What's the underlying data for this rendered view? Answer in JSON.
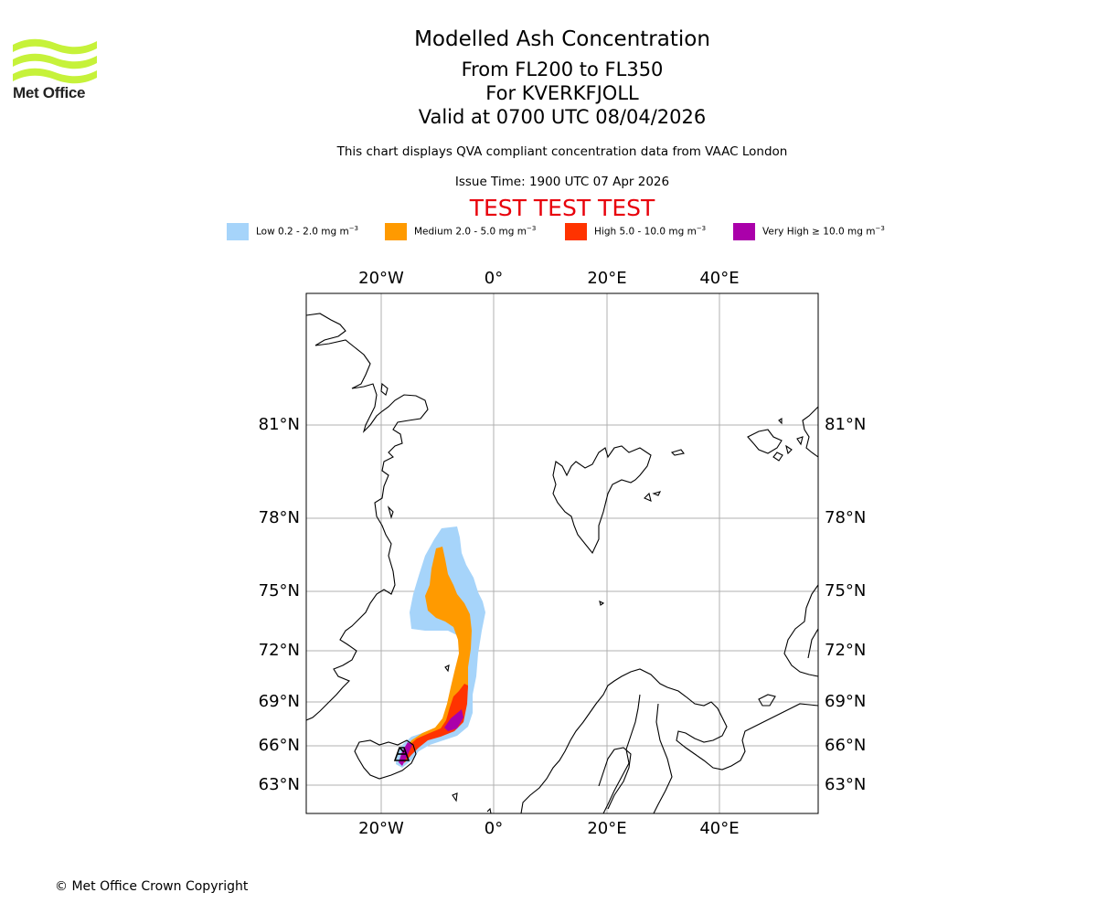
{
  "header": {
    "title": "Modelled Ash Concentration",
    "levels": "From FL200 to FL350",
    "volcano": "For KVERKFJOLL",
    "valid": "Valid at 0700 UTC 08/04/2026",
    "subtitle": "This chart displays QVA compliant concentration data from VAAC London",
    "issue_time": "Issue Time: 1900 UTC 07 Apr 2026",
    "test_banner": "TEST TEST TEST"
  },
  "logo": {
    "text": "Met Office",
    "color": "#c6f23a"
  },
  "legend": [
    {
      "label": "Low 0.2 - 2.0 mg m",
      "exp": "−3",
      "color": "#a6d4fa"
    },
    {
      "label": "Medium 2.0 - 5.0 mg m",
      "exp": "−3",
      "color": "#ff9a00"
    },
    {
      "label": "High 5.0 - 10.0 mg m",
      "exp": "−3",
      "color": "#ff3300"
    },
    {
      "label": "Very High ≥ 10.0 mg m",
      "exp": "−3",
      "color": "#aa00aa"
    }
  ],
  "map": {
    "lon_ticks": [
      "20°W",
      "0°",
      "20°E",
      "40°E"
    ],
    "lat_ticks": [
      "81°N",
      "78°N",
      "75°N",
      "72°N",
      "69°N",
      "66°N",
      "63°N"
    ]
  },
  "footer": {
    "copyright": "© Met Office Crown Copyright"
  }
}
